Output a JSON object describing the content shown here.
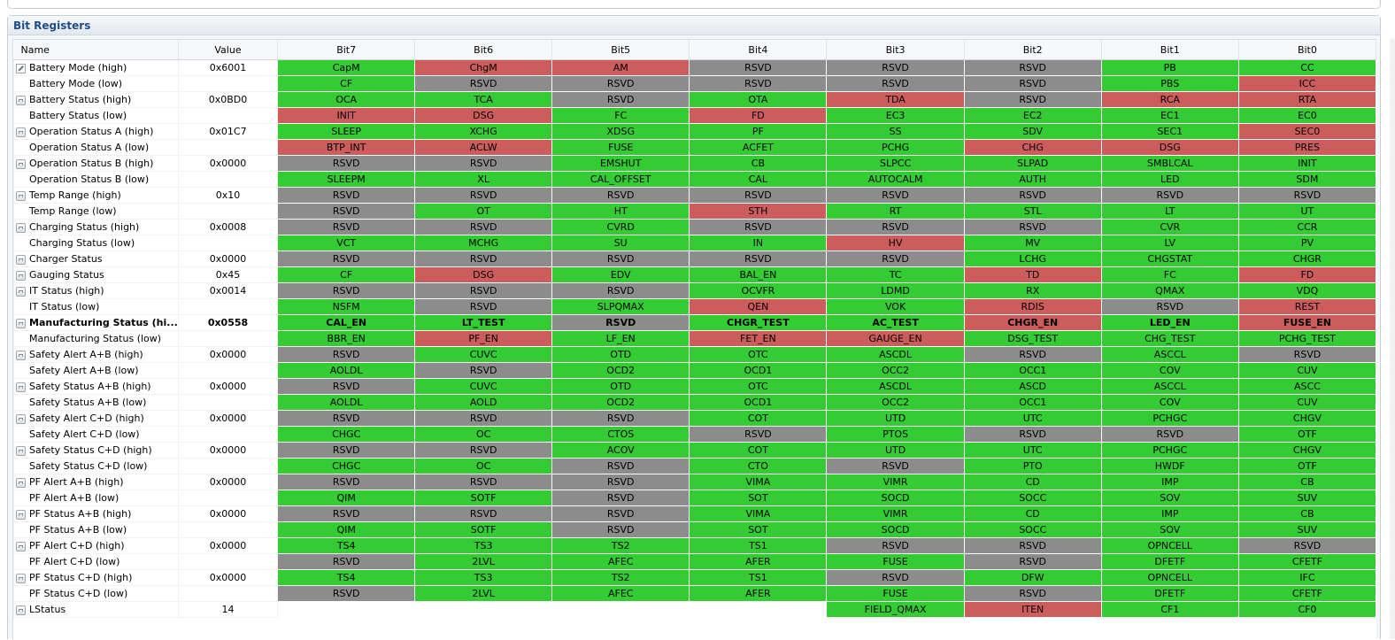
{
  "panel": {
    "title": "Bit Registers"
  },
  "columns": [
    "Name",
    "Value",
    "Bit7",
    "Bit6",
    "Bit5",
    "Bit4",
    "Bit3",
    "Bit2",
    "Bit1",
    "Bit0"
  ],
  "colors": {
    "set": "#33cc33",
    "alarm": "#cd5c5c",
    "reserved": "#8c8c8c"
  },
  "rows": [
    {
      "name": "Battery Mode (high)",
      "value": "0x6001",
      "icon": "pencil",
      "bits": [
        [
          "CapM",
          "g"
        ],
        [
          "ChgM",
          "r"
        ],
        [
          "AM",
          "r"
        ],
        [
          "RSVD",
          "x"
        ],
        [
          "RSVD",
          "x"
        ],
        [
          "RSVD",
          "x"
        ],
        [
          "PB",
          "g"
        ],
        [
          "CC",
          "g"
        ]
      ]
    },
    {
      "name": "Battery Mode (low)",
      "value": "",
      "icon": "",
      "bits": [
        [
          "CF",
          "g"
        ],
        [
          "RSVD",
          "x"
        ],
        [
          "RSVD",
          "x"
        ],
        [
          "RSVD",
          "x"
        ],
        [
          "RSVD",
          "x"
        ],
        [
          "RSVD",
          "x"
        ],
        [
          "PBS",
          "g"
        ],
        [
          "ICC",
          "r"
        ]
      ]
    },
    {
      "name": "Battery Status (high)",
      "value": "0x0BD0",
      "icon": "lock",
      "bits": [
        [
          "OCA",
          "g"
        ],
        [
          "TCA",
          "g"
        ],
        [
          "RSVD",
          "x"
        ],
        [
          "OTA",
          "g"
        ],
        [
          "TDA",
          "r"
        ],
        [
          "RSVD",
          "x"
        ],
        [
          "RCA",
          "r"
        ],
        [
          "RTA",
          "r"
        ]
      ]
    },
    {
      "name": "Battery Status (low)",
      "value": "",
      "icon": "",
      "bits": [
        [
          "INIT",
          "r"
        ],
        [
          "DSG",
          "r"
        ],
        [
          "FC",
          "g"
        ],
        [
          "FD",
          "r"
        ],
        [
          "EC3",
          "g"
        ],
        [
          "EC2",
          "g"
        ],
        [
          "EC1",
          "g"
        ],
        [
          "EC0",
          "g"
        ]
      ]
    },
    {
      "name": "Operation Status A (high)",
      "value": "0x01C7",
      "icon": "lock",
      "bits": [
        [
          "SLEEP",
          "g"
        ],
        [
          "XCHG",
          "g"
        ],
        [
          "XDSG",
          "g"
        ],
        [
          "PF",
          "g"
        ],
        [
          "SS",
          "g"
        ],
        [
          "SDV",
          "g"
        ],
        [
          "SEC1",
          "g"
        ],
        [
          "SEC0",
          "r"
        ]
      ]
    },
    {
      "name": "Operation Status A (low)",
      "value": "",
      "icon": "",
      "bits": [
        [
          "BTP_INT",
          "r"
        ],
        [
          "ACLW",
          "r"
        ],
        [
          "FUSE",
          "g"
        ],
        [
          "ACFET",
          "g"
        ],
        [
          "PCHG",
          "g"
        ],
        [
          "CHG",
          "r"
        ],
        [
          "DSG",
          "r"
        ],
        [
          "PRES",
          "r"
        ]
      ]
    },
    {
      "name": "Operation Status B (high)",
      "value": "0x0000",
      "icon": "lock",
      "bits": [
        [
          "RSVD",
          "x"
        ],
        [
          "RSVD",
          "x"
        ],
        [
          "EMSHUT",
          "g"
        ],
        [
          "CB",
          "g"
        ],
        [
          "SLPCC",
          "g"
        ],
        [
          "SLPAD",
          "g"
        ],
        [
          "SMBLCAL",
          "g"
        ],
        [
          "INIT",
          "g"
        ]
      ]
    },
    {
      "name": "Operation Status B (low)",
      "value": "",
      "icon": "",
      "bits": [
        [
          "SLEEPM",
          "g"
        ],
        [
          "XL",
          "g"
        ],
        [
          "CAL_OFFSET",
          "g"
        ],
        [
          "CAL",
          "g"
        ],
        [
          "AUTOCALM",
          "g"
        ],
        [
          "AUTH",
          "g"
        ],
        [
          "LED",
          "g"
        ],
        [
          "SDM",
          "g"
        ]
      ]
    },
    {
      "name": "Temp Range (high)",
      "value": "0x10",
      "icon": "lock",
      "bits": [
        [
          "RSVD",
          "x"
        ],
        [
          "RSVD",
          "x"
        ],
        [
          "RSVD",
          "x"
        ],
        [
          "RSVD",
          "x"
        ],
        [
          "RSVD",
          "x"
        ],
        [
          "RSVD",
          "x"
        ],
        [
          "RSVD",
          "x"
        ],
        [
          "RSVD",
          "x"
        ]
      ]
    },
    {
      "name": "Temp Range (low)",
      "value": "",
      "icon": "",
      "bits": [
        [
          "RSVD",
          "x"
        ],
        [
          "OT",
          "g"
        ],
        [
          "HT",
          "g"
        ],
        [
          "STH",
          "r"
        ],
        [
          "RT",
          "g"
        ],
        [
          "STL",
          "g"
        ],
        [
          "LT",
          "g"
        ],
        [
          "UT",
          "g"
        ]
      ]
    },
    {
      "name": "Charging Status (high)",
      "value": "0x0008",
      "icon": "lock",
      "bits": [
        [
          "RSVD",
          "x"
        ],
        [
          "RSVD",
          "x"
        ],
        [
          "CVRD",
          "g"
        ],
        [
          "RSVD",
          "x"
        ],
        [
          "RSVD",
          "x"
        ],
        [
          "RSVD",
          "x"
        ],
        [
          "CVR",
          "g"
        ],
        [
          "CCR",
          "g"
        ]
      ]
    },
    {
      "name": "Charging Status (low)",
      "value": "",
      "icon": "",
      "bits": [
        [
          "VCT",
          "g"
        ],
        [
          "MCHG",
          "g"
        ],
        [
          "SU",
          "g"
        ],
        [
          "IN",
          "g"
        ],
        [
          "HV",
          "r"
        ],
        [
          "MV",
          "g"
        ],
        [
          "LV",
          "g"
        ],
        [
          "PV",
          "g"
        ]
      ]
    },
    {
      "name": "Charger Status",
      "value": "0x0000",
      "icon": "lock",
      "bits": [
        [
          "RSVD",
          "x"
        ],
        [
          "RSVD",
          "x"
        ],
        [
          "RSVD",
          "x"
        ],
        [
          "RSVD",
          "x"
        ],
        [
          "RSVD",
          "x"
        ],
        [
          "LCHG",
          "g"
        ],
        [
          "CHGSTAT",
          "g"
        ],
        [
          "CHGR",
          "g"
        ]
      ]
    },
    {
      "name": "Gauging Status",
      "value": "0x45",
      "icon": "lock",
      "bits": [
        [
          "CF",
          "g"
        ],
        [
          "DSG",
          "r"
        ],
        [
          "EDV",
          "g"
        ],
        [
          "BAL_EN",
          "g"
        ],
        [
          "TC",
          "g"
        ],
        [
          "TD",
          "r"
        ],
        [
          "FC",
          "g"
        ],
        [
          "FD",
          "r"
        ]
      ]
    },
    {
      "name": "IT Status (high)",
      "value": "0x0014",
      "icon": "lock",
      "bits": [
        [
          "RSVD",
          "x"
        ],
        [
          "RSVD",
          "x"
        ],
        [
          "RSVD",
          "x"
        ],
        [
          "OCVFR",
          "g"
        ],
        [
          "LDMD",
          "g"
        ],
        [
          "RX",
          "g"
        ],
        [
          "QMAX",
          "g"
        ],
        [
          "VDQ",
          "g"
        ]
      ]
    },
    {
      "name": "IT Status (low)",
      "value": "",
      "icon": "",
      "bits": [
        [
          "NSFM",
          "g"
        ],
        [
          "RSVD",
          "x"
        ],
        [
          "SLPQMAX",
          "g"
        ],
        [
          "QEN",
          "r"
        ],
        [
          "VOK",
          "g"
        ],
        [
          "RDIS",
          "r"
        ],
        [
          "RSVD",
          "x"
        ],
        [
          "REST",
          "r"
        ]
      ]
    },
    {
      "name": "Manufacturing Status (hi...",
      "value": "0x0558",
      "icon": "lock",
      "bold": true,
      "bits": [
        [
          "CAL_EN",
          "g"
        ],
        [
          "LT_TEST",
          "g"
        ],
        [
          "RSVD",
          "x"
        ],
        [
          "CHGR_TEST",
          "g"
        ],
        [
          "AC_TEST",
          "g"
        ],
        [
          "CHGR_EN",
          "r"
        ],
        [
          "LED_EN",
          "g"
        ],
        [
          "FUSE_EN",
          "r"
        ]
      ]
    },
    {
      "name": "Manufacturing Status (low)",
      "value": "",
      "icon": "",
      "bits": [
        [
          "BBR_EN",
          "g"
        ],
        [
          "PF_EN",
          "r"
        ],
        [
          "LF_EN",
          "g"
        ],
        [
          "FET_EN",
          "r"
        ],
        [
          "GAUGE_EN",
          "r"
        ],
        [
          "DSG_TEST",
          "g"
        ],
        [
          "CHG_TEST",
          "g"
        ],
        [
          "PCHG_TEST",
          "g"
        ]
      ]
    },
    {
      "name": "Safety Alert A+B (high)",
      "value": "0x0000",
      "icon": "lock",
      "bits": [
        [
          "RSVD",
          "x"
        ],
        [
          "CUVC",
          "g"
        ],
        [
          "OTD",
          "g"
        ],
        [
          "OTC",
          "g"
        ],
        [
          "ASCDL",
          "g"
        ],
        [
          "RSVD",
          "x"
        ],
        [
          "ASCCL",
          "g"
        ],
        [
          "RSVD",
          "x"
        ]
      ]
    },
    {
      "name": "Safety Alert A+B (low)",
      "value": "",
      "icon": "",
      "bits": [
        [
          "AOLDL",
          "g"
        ],
        [
          "RSVD",
          "x"
        ],
        [
          "OCD2",
          "g"
        ],
        [
          "OCD1",
          "g"
        ],
        [
          "OCC2",
          "g"
        ],
        [
          "OCC1",
          "g"
        ],
        [
          "COV",
          "g"
        ],
        [
          "CUV",
          "g"
        ]
      ]
    },
    {
      "name": "Safety Status A+B (high)",
      "value": "0x0000",
      "icon": "lock",
      "bits": [
        [
          "RSVD",
          "x"
        ],
        [
          "CUVC",
          "g"
        ],
        [
          "OTD",
          "g"
        ],
        [
          "OTC",
          "g"
        ],
        [
          "ASCDL",
          "g"
        ],
        [
          "ASCD",
          "g"
        ],
        [
          "ASCCL",
          "g"
        ],
        [
          "ASCC",
          "g"
        ]
      ]
    },
    {
      "name": "Safety Status A+B (low)",
      "value": "",
      "icon": "",
      "bits": [
        [
          "AOLDL",
          "g"
        ],
        [
          "AOLD",
          "g"
        ],
        [
          "OCD2",
          "g"
        ],
        [
          "OCD1",
          "g"
        ],
        [
          "OCC2",
          "g"
        ],
        [
          "OCC1",
          "g"
        ],
        [
          "COV",
          "g"
        ],
        [
          "CUV",
          "g"
        ]
      ]
    },
    {
      "name": "Safety Alert C+D (high)",
      "value": "0x0000",
      "icon": "lock",
      "bits": [
        [
          "RSVD",
          "x"
        ],
        [
          "RSVD",
          "x"
        ],
        [
          "RSVD",
          "x"
        ],
        [
          "COT",
          "g"
        ],
        [
          "UTD",
          "g"
        ],
        [
          "UTC",
          "g"
        ],
        [
          "PCHGC",
          "g"
        ],
        [
          "CHGV",
          "g"
        ]
      ]
    },
    {
      "name": "Safety Alert C+D (low)",
      "value": "",
      "icon": "",
      "bits": [
        [
          "CHGC",
          "g"
        ],
        [
          "OC",
          "g"
        ],
        [
          "CTOS",
          "g"
        ],
        [
          "RSVD",
          "x"
        ],
        [
          "PTOS",
          "g"
        ],
        [
          "RSVD",
          "x"
        ],
        [
          "RSVD",
          "x"
        ],
        [
          "OTF",
          "g"
        ]
      ]
    },
    {
      "name": "Safety Status C+D (high)",
      "value": "0x0000",
      "icon": "lock",
      "bits": [
        [
          "RSVD",
          "x"
        ],
        [
          "RSVD",
          "x"
        ],
        [
          "ACOV",
          "g"
        ],
        [
          "COT",
          "g"
        ],
        [
          "UTD",
          "g"
        ],
        [
          "UTC",
          "g"
        ],
        [
          "PCHGC",
          "g"
        ],
        [
          "CHGV",
          "g"
        ]
      ]
    },
    {
      "name": "Safety Status C+D (low)",
      "value": "",
      "icon": "",
      "bits": [
        [
          "CHGC",
          "g"
        ],
        [
          "OC",
          "g"
        ],
        [
          "RSVD",
          "x"
        ],
        [
          "CTO",
          "g"
        ],
        [
          "RSVD",
          "x"
        ],
        [
          "PTO",
          "g"
        ],
        [
          "HWDF",
          "g"
        ],
        [
          "OTF",
          "g"
        ]
      ]
    },
    {
      "name": "PF Alert A+B (high)",
      "value": "0x0000",
      "icon": "lock",
      "bits": [
        [
          "RSVD",
          "x"
        ],
        [
          "RSVD",
          "x"
        ],
        [
          "RSVD",
          "x"
        ],
        [
          "VIMA",
          "g"
        ],
        [
          "VIMR",
          "g"
        ],
        [
          "CD",
          "g"
        ],
        [
          "IMP",
          "g"
        ],
        [
          "CB",
          "g"
        ]
      ]
    },
    {
      "name": "PF Alert A+B (low)",
      "value": "",
      "icon": "",
      "bits": [
        [
          "QIM",
          "g"
        ],
        [
          "SOTF",
          "g"
        ],
        [
          "RSVD",
          "x"
        ],
        [
          "SOT",
          "g"
        ],
        [
          "SOCD",
          "g"
        ],
        [
          "SOCC",
          "g"
        ],
        [
          "SOV",
          "g"
        ],
        [
          "SUV",
          "g"
        ]
      ]
    },
    {
      "name": "PF Status A+B (high)",
      "value": "0x0000",
      "icon": "lock",
      "bits": [
        [
          "RSVD",
          "x"
        ],
        [
          "RSVD",
          "x"
        ],
        [
          "RSVD",
          "x"
        ],
        [
          "VIMA",
          "g"
        ],
        [
          "VIMR",
          "g"
        ],
        [
          "CD",
          "g"
        ],
        [
          "IMP",
          "g"
        ],
        [
          "CB",
          "g"
        ]
      ]
    },
    {
      "name": "PF Status A+B (low)",
      "value": "",
      "icon": "",
      "bits": [
        [
          "QIM",
          "g"
        ],
        [
          "SOTF",
          "g"
        ],
        [
          "RSVD",
          "x"
        ],
        [
          "SOT",
          "g"
        ],
        [
          "SOCD",
          "g"
        ],
        [
          "SOCC",
          "g"
        ],
        [
          "SOV",
          "g"
        ],
        [
          "SUV",
          "g"
        ]
      ]
    },
    {
      "name": "PF Alert C+D (high)",
      "value": "0x0000",
      "icon": "lock",
      "bits": [
        [
          "TS4",
          "g"
        ],
        [
          "TS3",
          "g"
        ],
        [
          "TS2",
          "g"
        ],
        [
          "TS1",
          "g"
        ],
        [
          "RSVD",
          "x"
        ],
        [
          "RSVD",
          "x"
        ],
        [
          "OPNCELL",
          "g"
        ],
        [
          "RSVD",
          "x"
        ]
      ]
    },
    {
      "name": "PF Alert C+D (low)",
      "value": "",
      "icon": "",
      "bits": [
        [
          "RSVD",
          "x"
        ],
        [
          "2LVL",
          "g"
        ],
        [
          "AFEC",
          "g"
        ],
        [
          "AFER",
          "g"
        ],
        [
          "FUSE",
          "g"
        ],
        [
          "RSVD",
          "x"
        ],
        [
          "DFETF",
          "g"
        ],
        [
          "CFETF",
          "g"
        ]
      ]
    },
    {
      "name": "PF Status C+D (high)",
      "value": "0x0000",
      "icon": "lock",
      "bits": [
        [
          "TS4",
          "g"
        ],
        [
          "TS3",
          "g"
        ],
        [
          "TS2",
          "g"
        ],
        [
          "TS1",
          "g"
        ],
        [
          "RSVD",
          "x"
        ],
        [
          "DFW",
          "g"
        ],
        [
          "OPNCELL",
          "g"
        ],
        [
          "IFC",
          "g"
        ]
      ]
    },
    {
      "name": "PF Status C+D (low)",
      "value": "",
      "icon": "",
      "bits": [
        [
          "RSVD",
          "x"
        ],
        [
          "2LVL",
          "g"
        ],
        [
          "AFEC",
          "g"
        ],
        [
          "AFER",
          "g"
        ],
        [
          "FUSE",
          "g"
        ],
        [
          "RSVD",
          "x"
        ],
        [
          "DFETF",
          "g"
        ],
        [
          "CFETF",
          "g"
        ]
      ]
    },
    {
      "name": "LStatus",
      "value": "14",
      "icon": "lock",
      "bits": [
        [
          "",
          ""
        ],
        [
          "",
          ""
        ],
        [
          "",
          ""
        ],
        [
          "",
          ""
        ],
        [
          "FIELD_QMAX",
          "g"
        ],
        [
          "ITEN",
          "r"
        ],
        [
          "CF1",
          "g"
        ],
        [
          "CF0",
          "g"
        ]
      ]
    }
  ]
}
